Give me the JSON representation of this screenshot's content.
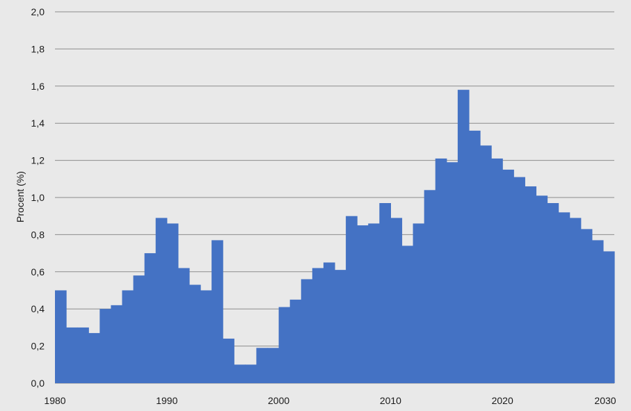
{
  "chart_data": {
    "type": "bar",
    "title": "",
    "xlabel": "",
    "ylabel": "Procent (%)",
    "grid": true,
    "legend": "none",
    "bar_color": "#4472c4",
    "grid_color": "#8c8c8c",
    "background_color": "#e9e9e9",
    "ylim": [
      0,
      2.0
    ],
    "xlim": [
      1980,
      2030
    ],
    "y_ticks": [
      0.0,
      0.2,
      0.4,
      0.6,
      0.8,
      1.0,
      1.2,
      1.4,
      1.6,
      1.8,
      2.0
    ],
    "y_tick_labels": [
      "0,0",
      "0,2",
      "0,4",
      "0,6",
      "0,8",
      "1,0",
      "1,2",
      "1,4",
      "1,6",
      "1,8",
      "2,0"
    ],
    "x_tick_labels": [
      "1980",
      "1990",
      "2000",
      "2010",
      "2020",
      "2030"
    ],
    "x": [
      1980,
      1981,
      1982,
      1983,
      1984,
      1985,
      1986,
      1987,
      1988,
      1989,
      1990,
      1991,
      1992,
      1993,
      1994,
      1995,
      1996,
      1997,
      1998,
      1999,
      2000,
      2001,
      2002,
      2003,
      2004,
      2005,
      2006,
      2007,
      2008,
      2009,
      2010,
      2011,
      2012,
      2013,
      2014,
      2015,
      2016,
      2017,
      2018,
      2019,
      2020,
      2021,
      2022,
      2023,
      2024,
      2025,
      2026,
      2027,
      2028,
      2029
    ],
    "values": [
      0.5,
      0.3,
      0.3,
      0.27,
      0.4,
      0.42,
      0.5,
      0.58,
      0.7,
      0.89,
      0.86,
      0.62,
      0.53,
      0.5,
      0.77,
      0.24,
      0.1,
      0.1,
      0.19,
      0.19,
      0.41,
      0.45,
      0.56,
      0.62,
      0.65,
      0.61,
      0.9,
      0.85,
      0.86,
      0.97,
      0.89,
      0.74,
      0.86,
      1.04,
      1.21,
      1.19,
      1.58,
      1.36,
      1.28,
      1.21,
      1.15,
      1.11,
      1.06,
      1.01,
      0.97,
      0.92,
      0.89,
      0.83,
      0.77,
      0.71
    ]
  }
}
